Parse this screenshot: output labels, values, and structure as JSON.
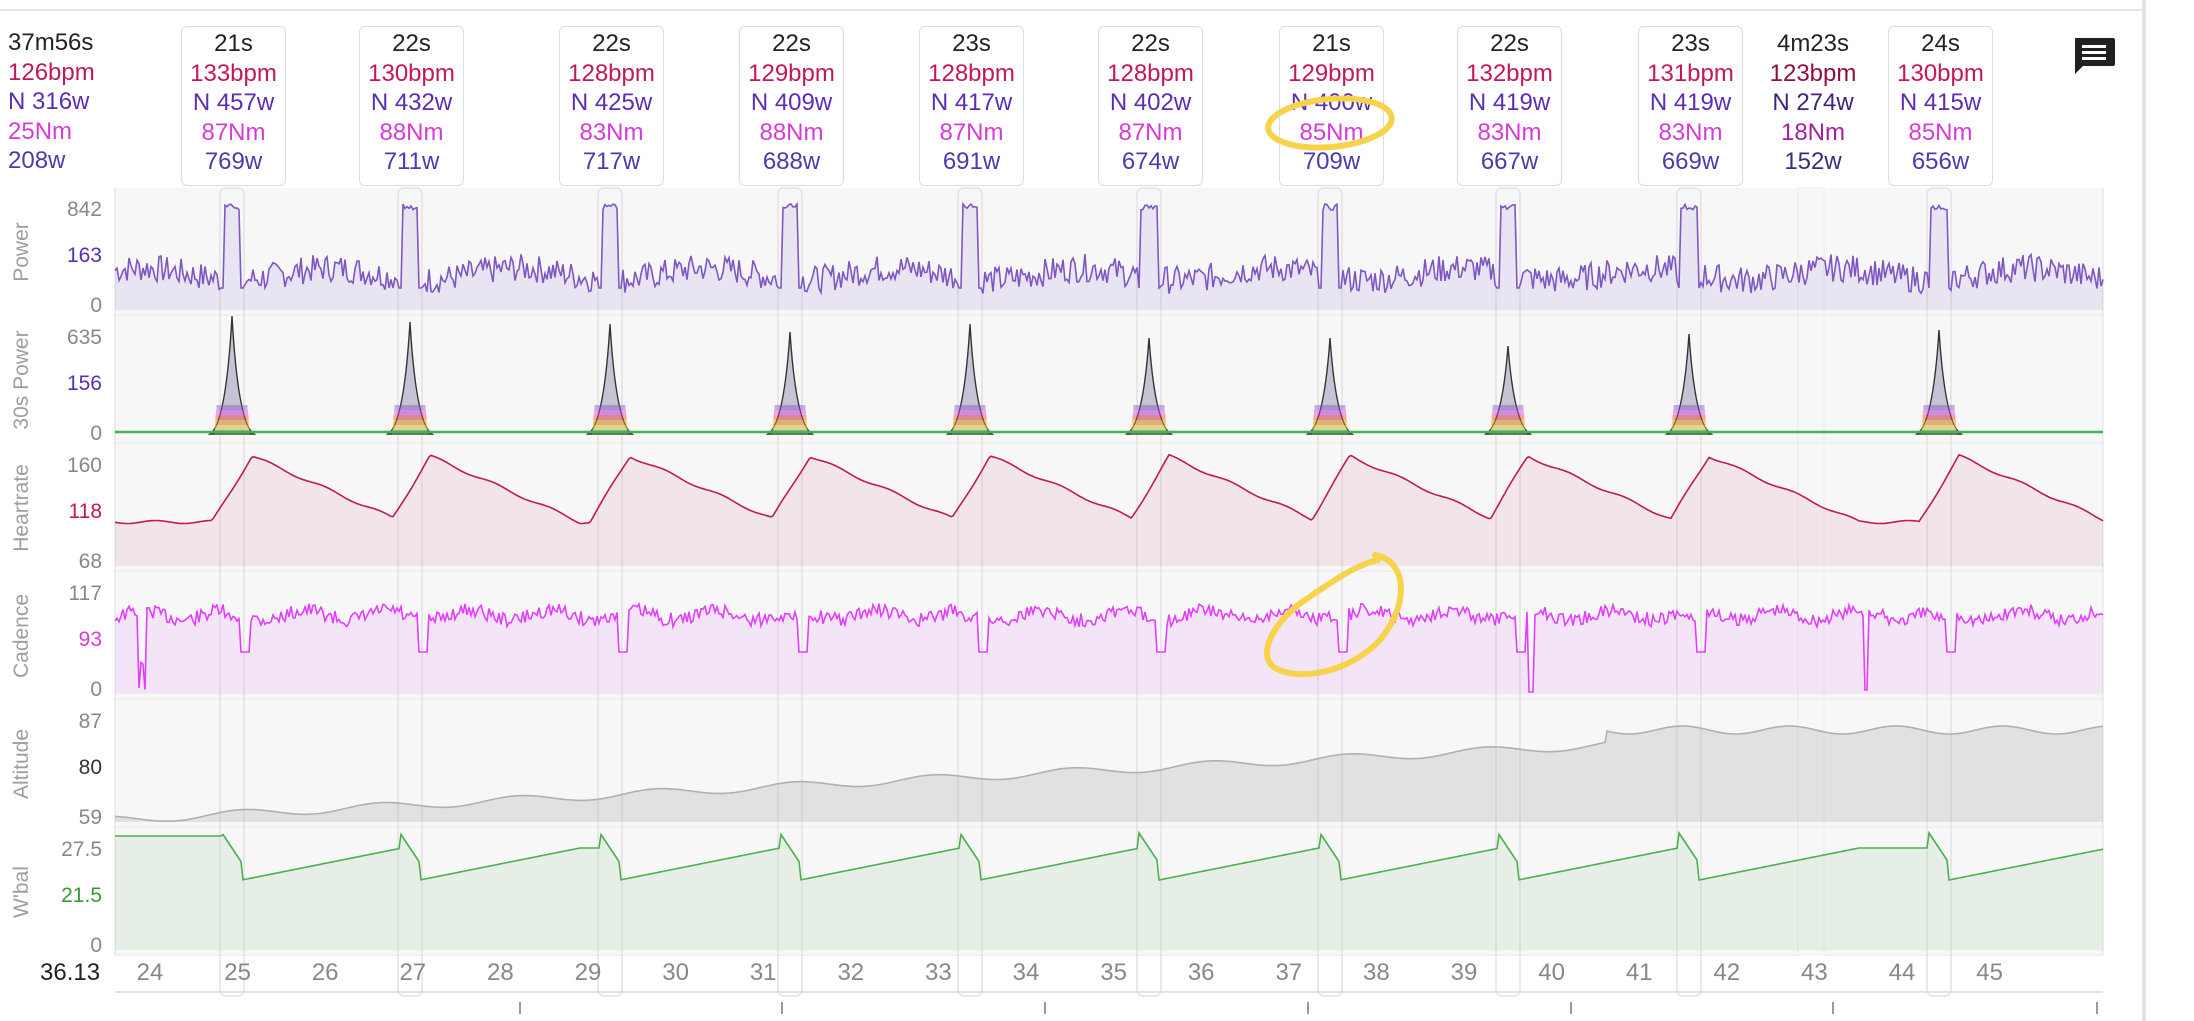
{
  "summary": {
    "duration": "37m56s",
    "heartrate": "126bpm",
    "np": "N 316w",
    "torque": "25Nm",
    "avg_power": "208w"
  },
  "intervals": [
    {
      "duration": "21s",
      "heartrate": "133bpm",
      "np": "N 457w",
      "torque": "87Nm",
      "avg_power": "769w",
      "selected": true
    },
    {
      "duration": "22s",
      "heartrate": "130bpm",
      "np": "N 432w",
      "torque": "88Nm",
      "avg_power": "711w",
      "selected": true
    },
    {
      "duration": "22s",
      "heartrate": "128bpm",
      "np": "N 425w",
      "torque": "83Nm",
      "avg_power": "717w",
      "selected": true
    },
    {
      "duration": "22s",
      "heartrate": "129bpm",
      "np": "N 409w",
      "torque": "88Nm",
      "avg_power": "688w",
      "selected": true
    },
    {
      "duration": "23s",
      "heartrate": "128bpm",
      "np": "N 417w",
      "torque": "87Nm",
      "avg_power": "691w",
      "selected": true
    },
    {
      "duration": "22s",
      "heartrate": "128bpm",
      "np": "N 402w",
      "torque": "87Nm",
      "avg_power": "674w",
      "selected": true
    },
    {
      "duration": "21s",
      "heartrate": "129bpm",
      "np": "N 400w",
      "torque": "85Nm",
      "avg_power": "709w",
      "selected": true
    },
    {
      "duration": "22s",
      "heartrate": "132bpm",
      "np": "N 419w",
      "torque": "83Nm",
      "avg_power": "667w",
      "selected": true
    },
    {
      "duration": "23s",
      "heartrate": "131bpm",
      "np": "N 419w",
      "torque": "83Nm",
      "avg_power": "669w",
      "selected": true
    },
    {
      "duration": "4m23s",
      "heartrate": "123bpm",
      "np": "N 274w",
      "torque": "18Nm",
      "avg_power": "152w",
      "selected": false
    },
    {
      "duration": "24s",
      "heartrate": "130bpm",
      "np": "N 415w",
      "torque": "85Nm",
      "avg_power": "656w",
      "selected": true
    }
  ],
  "panels": [
    {
      "label": "Power",
      "ticks": [
        "842",
        "163",
        "0"
      ],
      "mid_color": "#5b2db5"
    },
    {
      "label": "30s Power",
      "ticks": [
        "635",
        "156",
        "0"
      ],
      "mid_color": "#5b2db5"
    },
    {
      "label": "Heartrate",
      "ticks": [
        "160",
        "118",
        "68"
      ],
      "mid_color": "#c2185b"
    },
    {
      "label": "Cadence",
      "ticks": [
        "117",
        "93",
        "0"
      ],
      "mid_color": "#d63bd6"
    },
    {
      "label": "Altitude",
      "ticks": [
        "87",
        "80",
        "59"
      ],
      "mid_color": "#333333"
    },
    {
      "label": "W'bal",
      "ticks": [
        "27.5",
        "21.5",
        "0"
      ],
      "mid_color": "#3a9a3a"
    }
  ],
  "x_axis": {
    "start_value": "36.13",
    "ticks": [
      "24",
      "25",
      "26",
      "27",
      "28",
      "29",
      "30",
      "31",
      "32",
      "33",
      "34",
      "35",
      "36",
      "37",
      "38",
      "39",
      "40",
      "41",
      "42",
      "43",
      "44",
      "45"
    ]
  },
  "colors": {
    "power": "#7e57c2",
    "heartrate": "#c2185b",
    "cadence": "#e040fb",
    "altitude": "#b0b0b0",
    "wbal": "#4caf50",
    "annotation": "#f6d34a"
  },
  "icons": {
    "comment": "chat-bubble-icon"
  }
}
